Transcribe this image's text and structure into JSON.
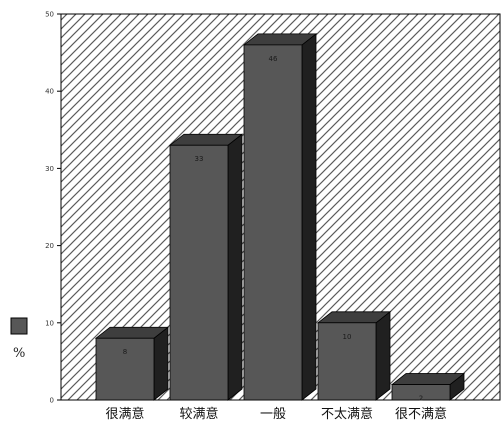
{
  "chart_data": {
    "type": "bar",
    "categories": [
      "很满意",
      "较满意",
      "一般",
      "不太满意",
      "很不满意"
    ],
    "series": [
      {
        "values": [
          8,
          33,
          46,
          10,
          2
        ]
      }
    ],
    "data_labels": [
      "8",
      "33",
      "46",
      "10",
      "2"
    ],
    "y_ticks": [
      "0",
      "10",
      "20",
      "30",
      "40",
      "50"
    ],
    "ylim": [
      0,
      50
    ],
    "legend": {
      "label": "%",
      "position": "left"
    },
    "colors": {
      "bar_front": "#575757",
      "bar_top": "#3e3e3e",
      "bar_side": "#202020",
      "background_hatch": "#555555",
      "axis": "#000000"
    },
    "grid": false,
    "background": "diagonal-hatch",
    "bar_style": "3d"
  }
}
